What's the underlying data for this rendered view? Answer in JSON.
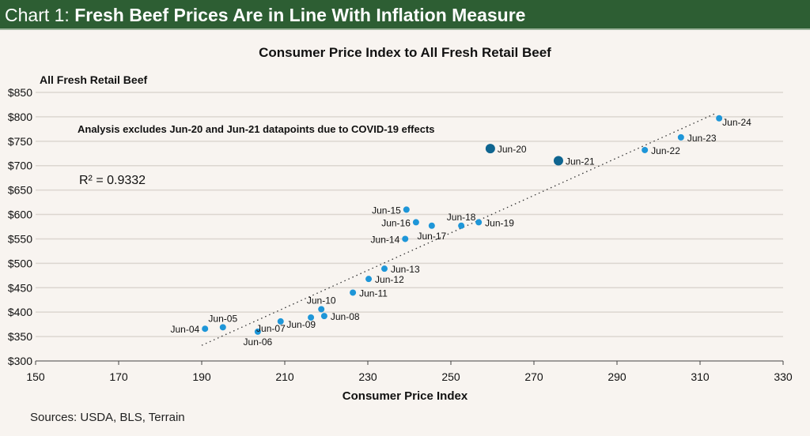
{
  "header": {
    "prefix": "Chart 1: ",
    "title": "Fresh Beef Prices Are in Line With Inflation Measure"
  },
  "sources": "Sources: USDA, BLS, Terrain",
  "chart_data": {
    "type": "scatter",
    "title": "Consumer Price Index to All Fresh Retail Beef",
    "xlabel": "Consumer Price Index",
    "ylabel": "All Fresh Retail Beef",
    "xlim": [
      150,
      330
    ],
    "ylim": [
      300,
      850
    ],
    "xticks": [
      150,
      170,
      190,
      210,
      230,
      250,
      270,
      290,
      310,
      330
    ],
    "yticks": [
      300,
      350,
      400,
      450,
      500,
      550,
      600,
      650,
      700,
      750,
      800,
      850
    ],
    "ytick_prefix": "$",
    "grid": "horizontal",
    "annotation": "Analysis excludes Jun-20 and Jun-21 datapoints due to COVID-19 effects",
    "r2_label": "R² = 0.9332",
    "trendline": {
      "style": "dotted",
      "from": [
        190,
        332
      ],
      "to": [
        314,
        808
      ]
    },
    "colors": {
      "point": "#1e96d8",
      "excluded": "#0f6590",
      "trend": "#333333"
    },
    "points": [
      {
        "label": "Jun-04",
        "x": 190.8,
        "y": 366,
        "pos": "left"
      },
      {
        "label": "Jun-05",
        "x": 195.1,
        "y": 369,
        "pos": "above"
      },
      {
        "label": "Jun-06",
        "x": 203.5,
        "y": 360,
        "pos": "below"
      },
      {
        "label": "Jun-07",
        "x": 209,
        "y": 381,
        "pos": "belowleft"
      },
      {
        "label": "Jun-08",
        "x": 219.5,
        "y": 392,
        "pos": "right"
      },
      {
        "label": "Jun-09",
        "x": 216.3,
        "y": 389,
        "pos": "belowleft"
      },
      {
        "label": "Jun-10",
        "x": 218.8,
        "y": 406,
        "pos": "above"
      },
      {
        "label": "Jun-11",
        "x": 226.4,
        "y": 440,
        "pos": "right"
      },
      {
        "label": "Jun-12",
        "x": 230.2,
        "y": 468,
        "pos": "right"
      },
      {
        "label": "Jun-13",
        "x": 234,
        "y": 489,
        "pos": "right"
      },
      {
        "label": "Jun-14",
        "x": 239,
        "y": 550,
        "pos": "left"
      },
      {
        "label": "Jun-15",
        "x": 239.3,
        "y": 610,
        "pos": "left"
      },
      {
        "label": "Jun-16",
        "x": 241.6,
        "y": 584,
        "pos": "left"
      },
      {
        "label": "Jun-17",
        "x": 245.4,
        "y": 577,
        "pos": "below"
      },
      {
        "label": "Jun-18",
        "x": 252.5,
        "y": 577,
        "pos": "above"
      },
      {
        "label": "Jun-19",
        "x": 256.7,
        "y": 584,
        "pos": "right"
      },
      {
        "label": "Jun-20",
        "x": 259.5,
        "y": 735,
        "pos": "right",
        "excluded": true
      },
      {
        "label": "Jun-21",
        "x": 275.9,
        "y": 710,
        "pos": "right",
        "excluded": true
      },
      {
        "label": "Jun-22",
        "x": 296.7,
        "y": 732,
        "pos": "right"
      },
      {
        "label": "Jun-23",
        "x": 305.4,
        "y": 758,
        "pos": "right"
      },
      {
        "label": "Jun-24",
        "x": 314.6,
        "y": 797,
        "pos": "belowright"
      }
    ]
  }
}
